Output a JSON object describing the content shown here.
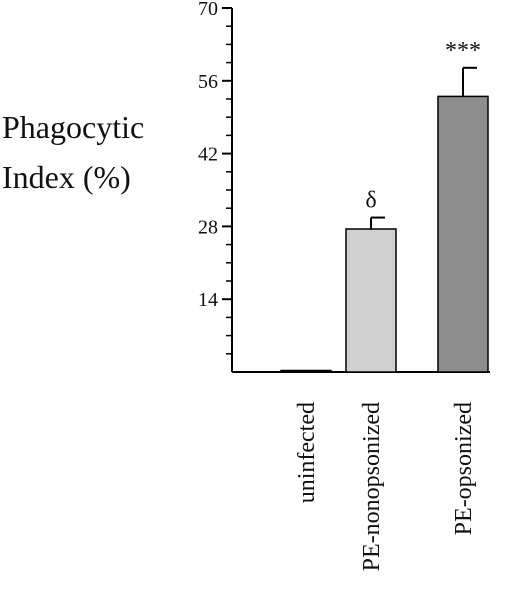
{
  "chart_data": {
    "type": "bar",
    "ylabel_lines": [
      "Phagocytic",
      "Index (%)"
    ],
    "xlabel": "",
    "ylim": [
      0,
      70
    ],
    "yticks": [
      14,
      28,
      42,
      56,
      70
    ],
    "categories": [
      "uninfected",
      "PE-nonopsonized",
      "PE-opsonized"
    ],
    "values": [
      0.2,
      27.5,
      53
    ],
    "errors": [
      0.2,
      2.2,
      5.5
    ],
    "annotations": [
      "",
      "δ",
      "***"
    ],
    "colors": [
      "#ffffff",
      "#d0d0d0",
      "#8e8e8e"
    ],
    "grid": false
  }
}
